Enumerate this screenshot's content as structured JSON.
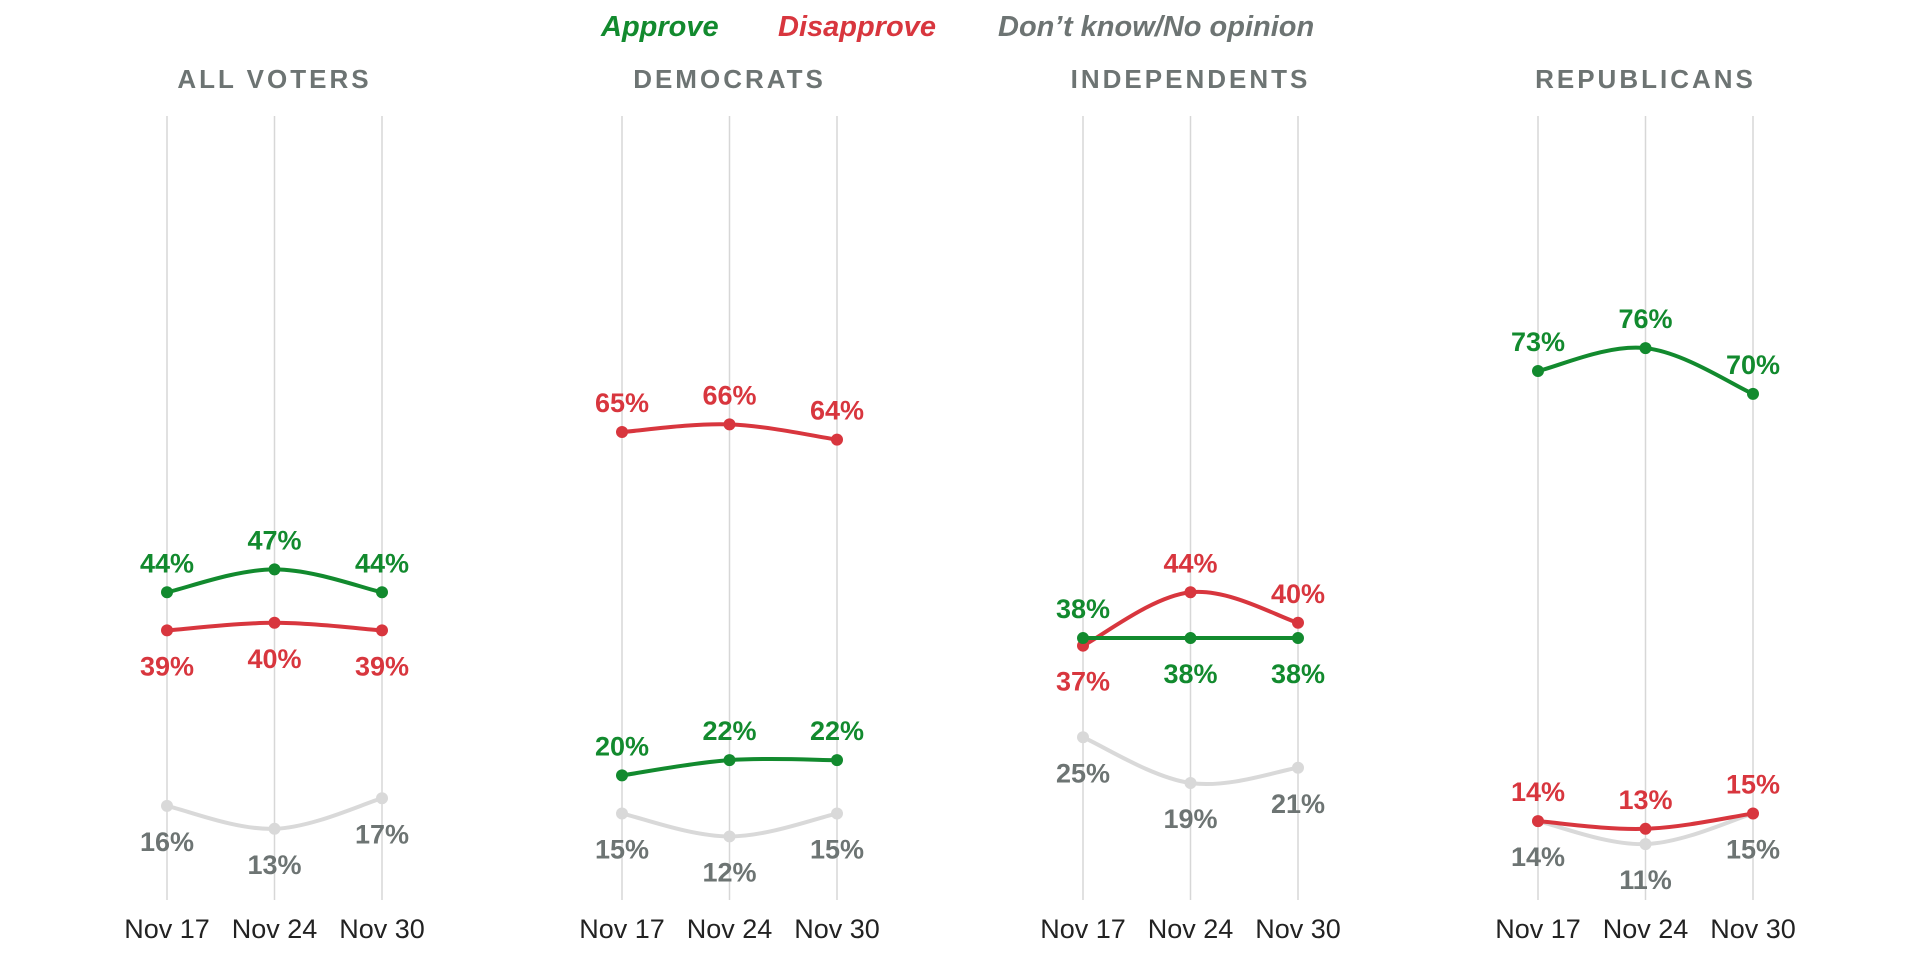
{
  "legend": {
    "approve": "Approve",
    "disapprove": "Disapprove",
    "dont_know": "Don’t know/No opinion"
  },
  "colors": {
    "approve_line": "#128a2e",
    "disapprove_line": "#d8363e",
    "dont_know_line": "#d9d9d9",
    "dont_know_label": "#6d7473",
    "gridline": "#d7d7d7",
    "title": "#6d7473"
  },
  "chart_data": [
    {
      "type": "line",
      "title": "ALL VOTERS",
      "x": [
        "Nov 17",
        "Nov 24",
        "Nov 30"
      ],
      "ylim": [
        0,
        100
      ],
      "grid": "vertical",
      "series": [
        {
          "name": "Approve",
          "values": [
            44,
            47,
            44
          ],
          "labels": [
            "44%",
            "47%",
            "44%"
          ]
        },
        {
          "name": "Disapprove",
          "values": [
            39,
            40,
            39
          ],
          "labels": [
            "39%",
            "40%",
            "39%"
          ]
        },
        {
          "name": "Don’t know/No opinion",
          "values": [
            16,
            13,
            17
          ],
          "labels": [
            "16%",
            "13%",
            "17%"
          ]
        }
      ]
    },
    {
      "type": "line",
      "title": "DEMOCRATS",
      "x": [
        "Nov 17",
        "Nov 24",
        "Nov 30"
      ],
      "ylim": [
        0,
        100
      ],
      "grid": "vertical",
      "series": [
        {
          "name": "Approve",
          "values": [
            20,
            22,
            22
          ],
          "labels": [
            "20%",
            "22%",
            "22%"
          ]
        },
        {
          "name": "Disapprove",
          "values": [
            65,
            66,
            64
          ],
          "labels": [
            "65%",
            "66%",
            "64%"
          ]
        },
        {
          "name": "Don’t know/No opinion",
          "values": [
            15,
            12,
            15
          ],
          "labels": [
            "15%",
            "12%",
            "15%"
          ]
        }
      ]
    },
    {
      "type": "line",
      "title": "INDEPENDENTS",
      "x": [
        "Nov 17",
        "Nov 24",
        "Nov 30"
      ],
      "ylim": [
        0,
        100
      ],
      "grid": "vertical",
      "series": [
        {
          "name": "Approve",
          "values": [
            38,
            38,
            38
          ],
          "labels": [
            "38%",
            "38%",
            "38%"
          ]
        },
        {
          "name": "Disapprove",
          "values": [
            37,
            44,
            40
          ],
          "labels": [
            "37%",
            "44%",
            "40%"
          ]
        },
        {
          "name": "Don’t know/No opinion",
          "values": [
            25,
            19,
            21
          ],
          "labels": [
            "25%",
            "19%",
            "21%"
          ]
        }
      ]
    },
    {
      "type": "line",
      "title": "REPUBLICANS",
      "x": [
        "Nov 17",
        "Nov 24",
        "Nov 30"
      ],
      "ylim": [
        0,
        100
      ],
      "grid": "vertical",
      "series": [
        {
          "name": "Approve",
          "values": [
            73,
            76,
            70
          ],
          "labels": [
            "73%",
            "76%",
            "70%"
          ]
        },
        {
          "name": "Disapprove",
          "values": [
            14,
            13,
            15
          ],
          "labels": [
            "14%",
            "13%",
            "15%"
          ]
        },
        {
          "name": "Don’t know/No opinion",
          "values": [
            14,
            11,
            15
          ],
          "labels": [
            "14%",
            "11%",
            "15%"
          ]
        }
      ]
    }
  ]
}
